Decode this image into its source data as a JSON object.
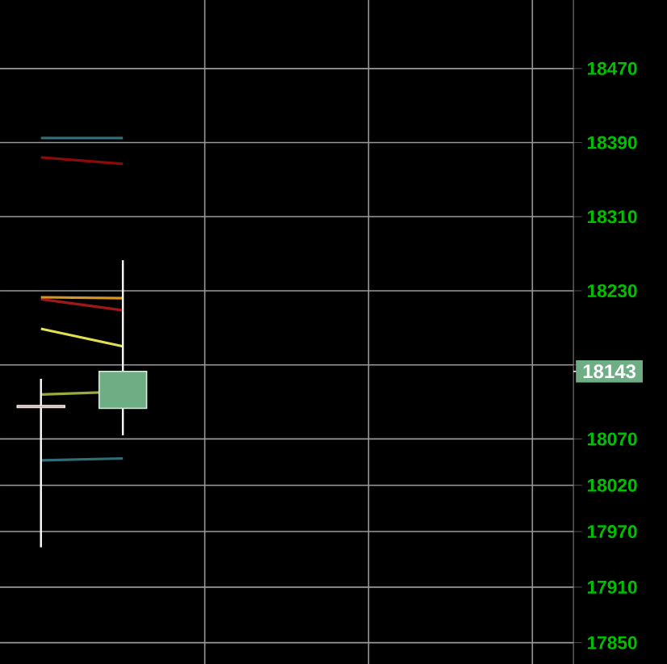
{
  "chart_data": {
    "type": "candlestick",
    "categories": [
      null,
      null,
      null,
      null,
      null,
      null,
      null
    ],
    "ohlc": [
      [
        18106,
        18135,
        17953,
        18104
      ],
      [
        18103,
        18263,
        18074,
        18143
      ],
      null,
      null,
      null,
      null,
      null
    ],
    "colors": [
      "#d08c8c",
      "#6fae84",
      null,
      null,
      null,
      null,
      null
    ],
    "series": [
      {
        "type": "line",
        "color": "#8b0a0a",
        "values": [
          18374,
          18367,
          null,
          null,
          null,
          null,
          null
        ]
      },
      {
        "type": "line",
        "color": "#a01818",
        "values": [
          18221,
          18209,
          null,
          null,
          null,
          null,
          null
        ]
      },
      {
        "type": "line",
        "color": "#d9961c",
        "values": [
          18223,
          18222,
          null,
          null,
          null,
          null,
          null
        ]
      },
      {
        "type": "line",
        "color": "#e0e050",
        "values": [
          18189,
          18170,
          null,
          null,
          null,
          null,
          null
        ]
      },
      {
        "type": "line",
        "color": "#9aa83c",
        "values": [
          18118,
          18121,
          null,
          null,
          null,
          null,
          null
        ]
      },
      {
        "type": "line",
        "color": "#2e6e78",
        "values": [
          18395,
          18395,
          null,
          null,
          null,
          null,
          null
        ]
      },
      {
        "type": "line",
        "color": "#2e6e78",
        "values": [
          18047,
          18049,
          null,
          null,
          null,
          null,
          null
        ]
      }
    ],
    "ylim": [
      17827,
      18544
    ],
    "yticks": [
      17850,
      17910,
      17970,
      18020,
      18070,
      {
        "value": 18150,
        "label": null
      },
      18230,
      18310,
      18390,
      18470
    ],
    "tick_labels": "y",
    "grid": true,
    "annotations": [
      {
        "text": "18143",
        "y": 18143
      }
    ]
  }
}
